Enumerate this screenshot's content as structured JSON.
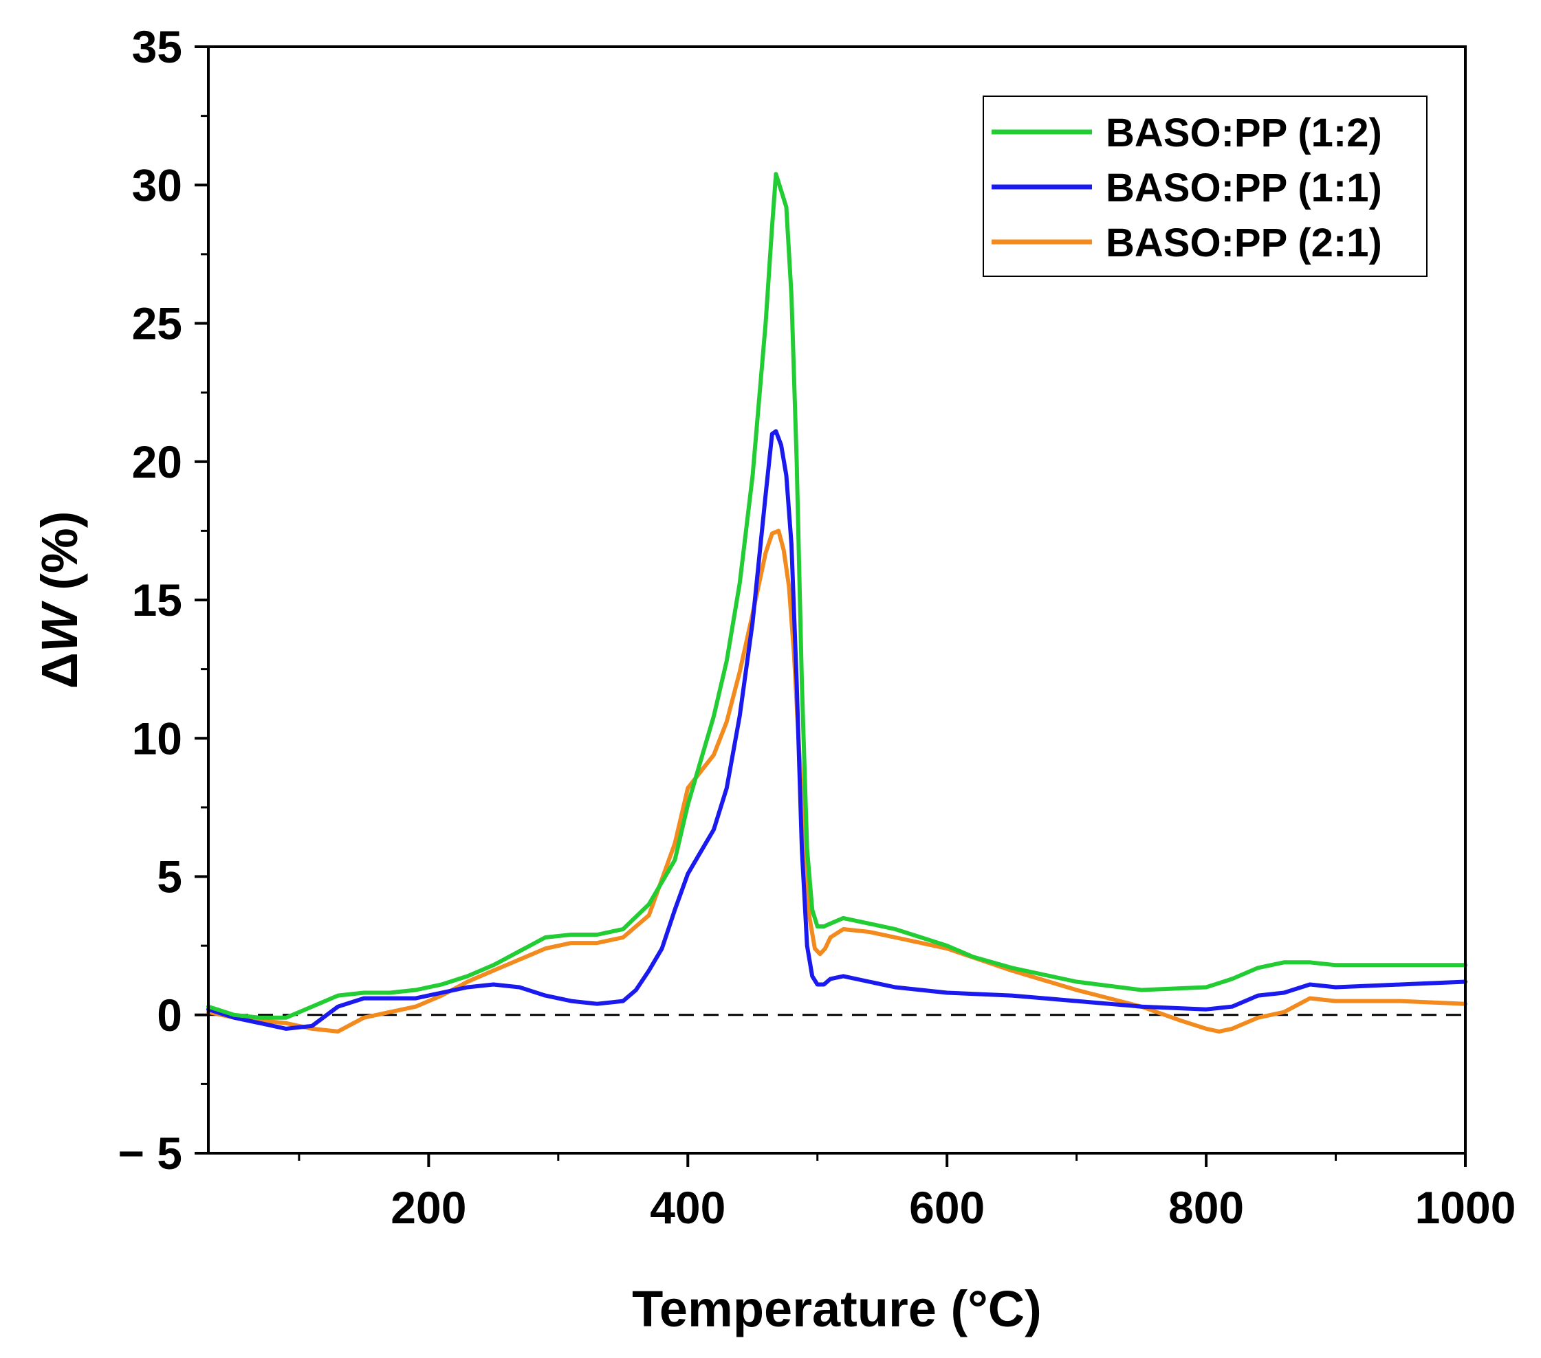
{
  "chart_data": {
    "type": "line",
    "title": "",
    "xlabel": "Temperature (°C)",
    "ylabel_symbol": "Δ",
    "ylabel_var": "W",
    "ylabel_unit": " (%)",
    "xlim": [
      30,
      1000
    ],
    "ylim": [
      -5,
      35
    ],
    "xticks": [
      200,
      400,
      600,
      800,
      1000
    ],
    "xtick_labels": [
      "200",
      "400",
      "600",
      "800",
      "1000"
    ],
    "yticks": [
      -5,
      0,
      5,
      10,
      15,
      20,
      25,
      30,
      35
    ],
    "ytick_labels": [
      "− 5",
      "0",
      "5",
      "10",
      "15",
      "20",
      "25",
      "30",
      "35"
    ],
    "grid": false,
    "legend_position": "top-right",
    "reference_line": {
      "y": 0,
      "style": "dashed"
    },
    "series": [
      {
        "name": "BASO:PP (1:2)",
        "color": "#22cc33",
        "x": [
          30,
          50,
          70,
          90,
          110,
          130,
          150,
          170,
          190,
          210,
          230,
          250,
          270,
          290,
          310,
          330,
          350,
          370,
          390,
          400,
          410,
          420,
          430,
          440,
          450,
          460,
          465,
          468,
          472,
          476,
          480,
          484,
          488,
          492,
          496,
          500,
          505,
          510,
          520,
          540,
          560,
          580,
          600,
          620,
          650,
          700,
          750,
          800,
          820,
          840,
          860,
          880,
          900,
          950,
          1000
        ],
        "y": [
          0.3,
          0.0,
          -0.1,
          -0.1,
          0.3,
          0.7,
          0.8,
          0.8,
          0.9,
          1.1,
          1.4,
          1.8,
          2.3,
          2.8,
          2.9,
          2.9,
          3.1,
          4.0,
          5.6,
          7.6,
          9.2,
          10.8,
          12.8,
          15.6,
          19.5,
          25.0,
          28.5,
          30.4,
          29.8,
          29.2,
          26.0,
          20.0,
          12.0,
          6.0,
          3.8,
          3.2,
          3.2,
          3.3,
          3.5,
          3.3,
          3.1,
          2.8,
          2.5,
          2.1,
          1.7,
          1.2,
          0.9,
          1.0,
          1.3,
          1.7,
          1.9,
          1.9,
          1.8,
          1.8,
          1.8
        ]
      },
      {
        "name": "BASO:PP (1:1)",
        "color": "#1a1aee",
        "x": [
          30,
          50,
          70,
          90,
          110,
          130,
          150,
          170,
          190,
          210,
          230,
          250,
          270,
          290,
          310,
          330,
          350,
          360,
          370,
          380,
          390,
          400,
          410,
          420,
          430,
          440,
          450,
          460,
          465,
          468,
          472,
          476,
          480,
          484,
          488,
          492,
          496,
          500,
          505,
          510,
          520,
          540,
          560,
          580,
          600,
          650,
          700,
          750,
          800,
          820,
          840,
          860,
          880,
          900,
          950,
          1000
        ],
        "y": [
          0.2,
          -0.1,
          -0.3,
          -0.5,
          -0.4,
          0.3,
          0.6,
          0.6,
          0.6,
          0.8,
          1.0,
          1.1,
          1.0,
          0.7,
          0.5,
          0.4,
          0.5,
          0.9,
          1.6,
          2.4,
          3.8,
          5.1,
          5.9,
          6.7,
          8.2,
          10.8,
          14.2,
          18.8,
          21.0,
          21.1,
          20.6,
          19.5,
          17.0,
          12.0,
          6.0,
          2.5,
          1.4,
          1.1,
          1.1,
          1.3,
          1.4,
          1.2,
          1.0,
          0.9,
          0.8,
          0.7,
          0.5,
          0.3,
          0.2,
          0.3,
          0.7,
          0.8,
          1.1,
          1.0,
          1.1,
          1.2
        ]
      },
      {
        "name": "BASO:PP (2:1)",
        "color": "#f28a1e",
        "x": [
          30,
          50,
          70,
          90,
          110,
          130,
          150,
          170,
          190,
          210,
          230,
          250,
          270,
          290,
          310,
          330,
          350,
          370,
          390,
          400,
          410,
          420,
          430,
          440,
          450,
          460,
          465,
          470,
          474,
          478,
          482,
          486,
          490,
          494,
          498,
          502,
          506,
          510,
          520,
          540,
          560,
          580,
          600,
          650,
          700,
          750,
          780,
          800,
          810,
          820,
          840,
          860,
          880,
          900,
          950,
          1000
        ],
        "y": [
          0.1,
          -0.1,
          -0.2,
          -0.3,
          -0.5,
          -0.6,
          -0.1,
          0.1,
          0.3,
          0.7,
          1.2,
          1.6,
          2.0,
          2.4,
          2.6,
          2.6,
          2.8,
          3.6,
          6.2,
          8.2,
          8.8,
          9.4,
          10.6,
          12.4,
          14.5,
          16.7,
          17.4,
          17.5,
          16.8,
          15.5,
          13.0,
          9.5,
          6.0,
          3.5,
          2.4,
          2.2,
          2.4,
          2.8,
          3.1,
          3.0,
          2.8,
          2.6,
          2.4,
          1.6,
          0.9,
          0.3,
          -0.2,
          -0.5,
          -0.6,
          -0.5,
          -0.1,
          0.1,
          0.6,
          0.5,
          0.5,
          0.4
        ]
      }
    ]
  }
}
